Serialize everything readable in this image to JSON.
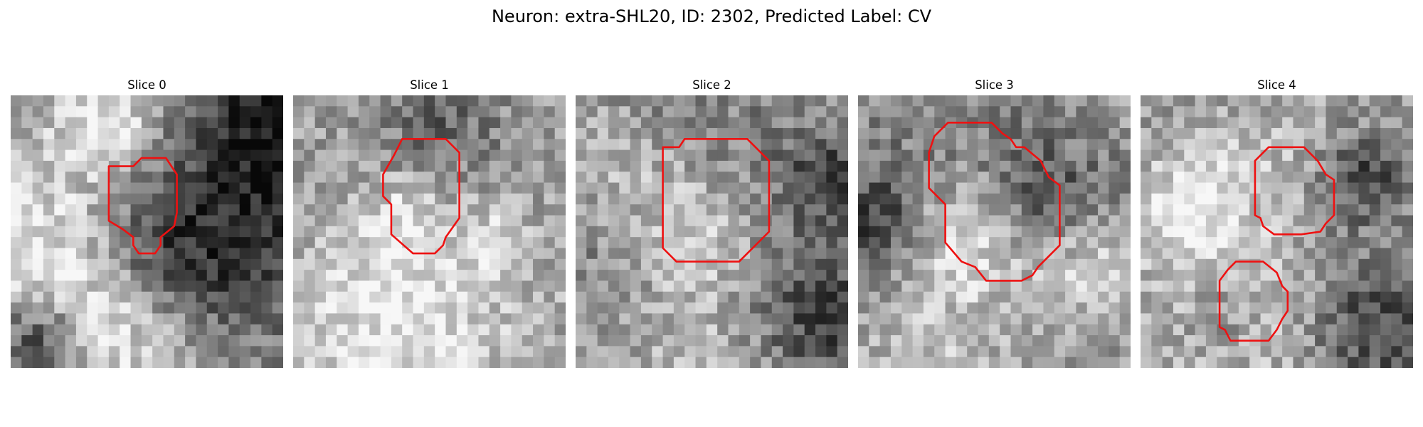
{
  "figure": {
    "title": "Neuron: extra-SHL20, ID: 2302, Predicted Label: CV"
  },
  "contour_color": "#ee1111",
  "panels": [
    {
      "title": "Slice 0",
      "seed": 11,
      "bright": [
        [
          0.35,
          0.1,
          0.14,
          0.32
        ],
        [
          0.1,
          0.55,
          0.22,
          0.28
        ],
        [
          0.4,
          0.85,
          0.18,
          0.26
        ]
      ],
      "dark": [
        [
          0.85,
          0.5,
          0.28,
          0.45
        ],
        [
          0.5,
          0.55,
          0.14,
          0.18
        ],
        [
          0.1,
          0.9,
          0.12,
          0.4
        ],
        [
          0.95,
          0.05,
          0.2,
          0.4
        ]
      ],
      "contours": [
        [
          [
            0.36,
            0.26
          ],
          [
            0.45,
            0.26
          ],
          [
            0.48,
            0.23
          ],
          [
            0.57,
            0.23
          ],
          [
            0.61,
            0.29
          ],
          [
            0.61,
            0.43
          ],
          [
            0.6,
            0.48
          ],
          [
            0.55,
            0.52
          ],
          [
            0.55,
            0.55
          ],
          [
            0.53,
            0.58
          ],
          [
            0.47,
            0.58
          ],
          [
            0.45,
            0.55
          ],
          [
            0.45,
            0.52
          ],
          [
            0.41,
            0.49
          ],
          [
            0.36,
            0.46
          ]
        ]
      ]
    },
    {
      "title": "Slice 1",
      "seed": 23,
      "bright": [
        [
          0.42,
          0.45,
          0.14,
          0.32
        ],
        [
          0.7,
          0.55,
          0.1,
          0.3
        ],
        [
          0.4,
          0.82,
          0.3,
          0.3
        ]
      ],
      "dark": [
        [
          0.4,
          0.38,
          0.18,
          0.15
        ],
        [
          0.62,
          0.55,
          0.12,
          0.2
        ],
        [
          0.55,
          0.1,
          0.15,
          0.22
        ]
      ],
      "contours": [
        [
          [
            0.37,
            0.22
          ],
          [
            0.4,
            0.16
          ],
          [
            0.56,
            0.16
          ],
          [
            0.61,
            0.21
          ],
          [
            0.61,
            0.45
          ],
          [
            0.56,
            0.52
          ],
          [
            0.55,
            0.55
          ],
          [
            0.52,
            0.58
          ],
          [
            0.44,
            0.58
          ],
          [
            0.36,
            0.51
          ],
          [
            0.36,
            0.4
          ],
          [
            0.33,
            0.37
          ],
          [
            0.33,
            0.29
          ]
        ]
      ]
    },
    {
      "title": "Slice 2",
      "seed": 37,
      "bright": [
        [
          0.44,
          0.48,
          0.2,
          0.45
        ],
        [
          0.5,
          0.9,
          0.25,
          0.25
        ],
        [
          0.15,
          0.25,
          0.15,
          0.2
        ]
      ],
      "dark": [
        [
          0.44,
          0.48,
          0.33,
          0.35
        ],
        [
          0.9,
          0.85,
          0.2,
          0.35
        ],
        [
          0.95,
          0.3,
          0.12,
          0.3
        ]
      ],
      "contours": [
        [
          [
            0.32,
            0.19
          ],
          [
            0.38,
            0.19
          ],
          [
            0.4,
            0.16
          ],
          [
            0.63,
            0.16
          ],
          [
            0.71,
            0.24
          ],
          [
            0.71,
            0.5
          ],
          [
            0.63,
            0.58
          ],
          [
            0.6,
            0.61
          ],
          [
            0.37,
            0.61
          ],
          [
            0.32,
            0.56
          ]
        ]
      ]
    },
    {
      "title": "Slice 3",
      "seed": 51,
      "bright": [
        [
          0.42,
          0.5,
          0.2,
          0.5
        ],
        [
          0.82,
          0.62,
          0.15,
          0.3
        ],
        [
          0.3,
          0.9,
          0.25,
          0.22
        ]
      ],
      "dark": [
        [
          0.42,
          0.48,
          0.33,
          0.35
        ],
        [
          0.7,
          0.4,
          0.14,
          0.25
        ],
        [
          0.05,
          0.45,
          0.12,
          0.3
        ]
      ],
      "contours": [
        [
          [
            0.26,
            0.21
          ],
          [
            0.28,
            0.15
          ],
          [
            0.33,
            0.1
          ],
          [
            0.49,
            0.1
          ],
          [
            0.53,
            0.14
          ],
          [
            0.56,
            0.16
          ],
          [
            0.58,
            0.19
          ],
          [
            0.61,
            0.19
          ],
          [
            0.67,
            0.24
          ],
          [
            0.7,
            0.3
          ],
          [
            0.74,
            0.33
          ],
          [
            0.74,
            0.55
          ],
          [
            0.66,
            0.63
          ],
          [
            0.64,
            0.66
          ],
          [
            0.6,
            0.68
          ],
          [
            0.47,
            0.68
          ],
          [
            0.43,
            0.63
          ],
          [
            0.38,
            0.61
          ],
          [
            0.32,
            0.54
          ],
          [
            0.32,
            0.4
          ],
          [
            0.26,
            0.34
          ]
        ]
      ]
    },
    {
      "title": "Slice 4",
      "seed": 67,
      "bright": [
        [
          0.5,
          0.35,
          0.2,
          0.3
        ],
        [
          0.4,
          0.8,
          0.2,
          0.25
        ],
        [
          0.15,
          0.45,
          0.15,
          0.25
        ]
      ],
      "dark": [
        [
          0.55,
          0.4,
          0.18,
          0.22
        ],
        [
          0.82,
          0.3,
          0.12,
          0.35
        ],
        [
          0.33,
          0.8,
          0.12,
          0.25
        ],
        [
          0.85,
          0.85,
          0.18,
          0.35
        ]
      ],
      "contours": [
        [
          [
            0.42,
            0.24
          ],
          [
            0.47,
            0.19
          ],
          [
            0.6,
            0.19
          ],
          [
            0.65,
            0.24
          ],
          [
            0.68,
            0.29
          ],
          [
            0.71,
            0.31
          ],
          [
            0.71,
            0.44
          ],
          [
            0.68,
            0.47
          ],
          [
            0.66,
            0.5
          ],
          [
            0.59,
            0.51
          ],
          [
            0.49,
            0.51
          ],
          [
            0.45,
            0.48
          ],
          [
            0.44,
            0.45
          ],
          [
            0.42,
            0.44
          ]
        ],
        [
          [
            0.29,
            0.68
          ],
          [
            0.32,
            0.64
          ],
          [
            0.35,
            0.61
          ],
          [
            0.45,
            0.61
          ],
          [
            0.5,
            0.65
          ],
          [
            0.52,
            0.7
          ],
          [
            0.54,
            0.72
          ],
          [
            0.54,
            0.79
          ],
          [
            0.52,
            0.82
          ],
          [
            0.5,
            0.86
          ],
          [
            0.47,
            0.9
          ],
          [
            0.33,
            0.9
          ],
          [
            0.31,
            0.86
          ],
          [
            0.29,
            0.85
          ]
        ]
      ]
    }
  ]
}
